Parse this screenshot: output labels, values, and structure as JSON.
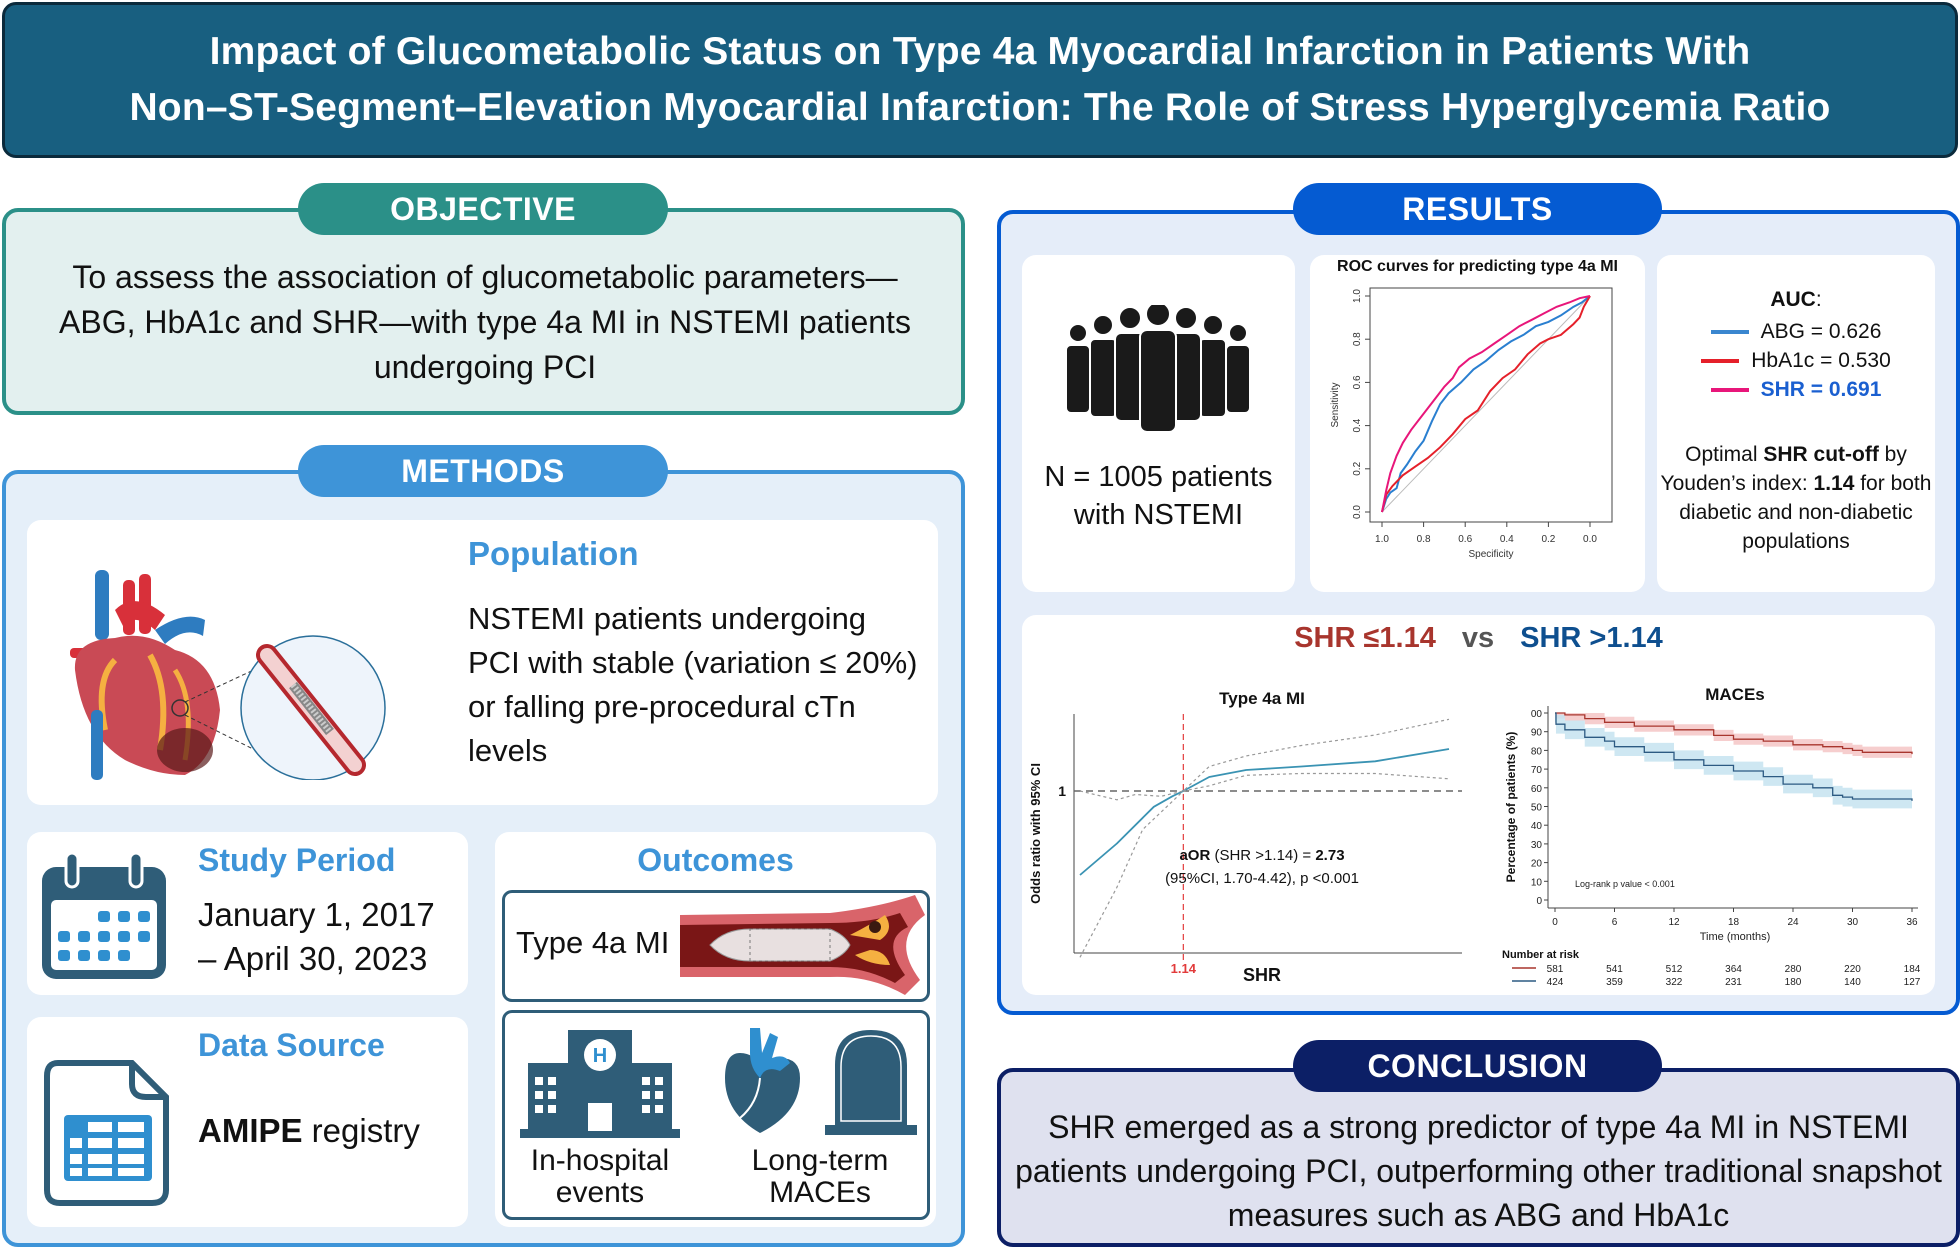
{
  "header": {
    "title_line1": "Impact of Glucometabolic Status on Type 4a Myocardial Infarction in Patients With",
    "title_line2": "Non–ST-Segment–Elevation Myocardial Infarction: The Role of Stress Hyperglycemia Ratio"
  },
  "objective": {
    "label": "OBJECTIVE",
    "text": "To assess the association of glucometabolic parameters—ABG, HbA1c and SHR—with type 4a MI in NSTEMI patients undergoing PCI"
  },
  "methods": {
    "label": "METHODS",
    "population": {
      "title": "Population",
      "text": "NSTEMI patients undergoing PCI with stable (variation ≤ 20%) or falling pre-procedural cTn levels",
      "icon": "heart-with-stent-icon"
    },
    "study_period": {
      "title": "Study Period",
      "line1": "January 1, 2017",
      "line2": "– April 30, 2023",
      "icon": "calendar-icon"
    },
    "data_source": {
      "title": "Data Source",
      "bold": "AMIPE",
      "rest": " registry",
      "icon": "spreadsheet-file-icon"
    },
    "outcomes": {
      "title": "Outcomes",
      "type4a": "Type 4a MI",
      "inhospital_line1": "In-hospital",
      "inhospital_line2": "events",
      "longterm_line1": "Long-term",
      "longterm_line2": "MACEs"
    }
  },
  "results": {
    "label": "RESULTS",
    "n_line1": "N = 1005 patients",
    "n_line2": "with NSTEMI",
    "auc": {
      "title": "AUC",
      "items": [
        {
          "label": "ABG = 0.626",
          "color": "#3a86cf"
        },
        {
          "label": "HbA1c = 0.530",
          "color": "#e5202a"
        },
        {
          "label": "SHR = 0.691",
          "color": "#e8167a",
          "text_color": "#1a5fd0"
        }
      ],
      "note_pre": "Optimal ",
      "note_bold1": "SHR cut-off",
      "note_mid": " by Youden’s index: ",
      "note_bold2": "1.14",
      "note_post": " for both diabetic and non-diabetic populations"
    },
    "compare": {
      "low": "SHR ≤1.14",
      "vs": "vs",
      "high": "SHR >1.14"
    }
  },
  "conclusion": {
    "label": "CONCLUSION",
    "text": "SHR emerged as a strong predictor of type 4a MI in NSTEMI patients undergoing PCI, outperforming other  traditional snapshot measures such as ABG and HbA1c"
  },
  "chart_data": [
    {
      "type": "line",
      "title": "ROC curves for predicting type 4a MI",
      "xlabel": "Specificity",
      "ylabel": "Sensitivity",
      "xlim": [
        1.0,
        0.0
      ],
      "ylim": [
        0.0,
        1.0
      ],
      "xticks": [
        "1.0",
        "0.8",
        "0.6",
        "0.4",
        "0.2",
        "0.0"
      ],
      "yticks": [
        "0.0",
        "0.2",
        "0.4",
        "0.6",
        "0.8",
        "1.0"
      ],
      "series": [
        {
          "name": "ABG",
          "color": "#2a7fd0",
          "specificity": [
            1.0,
            0.98,
            0.96,
            0.93,
            0.91,
            0.88,
            0.84,
            0.8,
            0.76,
            0.72,
            0.68,
            0.62,
            0.56,
            0.5,
            0.44,
            0.38,
            0.32,
            0.26,
            0.2,
            0.14,
            0.08,
            0.04,
            0.0
          ],
          "sensitivity": [
            0.0,
            0.06,
            0.09,
            0.11,
            0.18,
            0.22,
            0.28,
            0.33,
            0.42,
            0.5,
            0.55,
            0.6,
            0.66,
            0.7,
            0.75,
            0.79,
            0.82,
            0.86,
            0.88,
            0.91,
            0.95,
            0.97,
            1.0
          ]
        },
        {
          "name": "HbA1c",
          "color": "#e5202a",
          "specificity": [
            1.0,
            0.98,
            0.95,
            0.9,
            0.84,
            0.78,
            0.72,
            0.66,
            0.6,
            0.54,
            0.48,
            0.42,
            0.36,
            0.3,
            0.24,
            0.2,
            0.14,
            0.08,
            0.05,
            0.03,
            0.0
          ],
          "sensitivity": [
            0.0,
            0.08,
            0.12,
            0.17,
            0.21,
            0.25,
            0.3,
            0.36,
            0.43,
            0.47,
            0.56,
            0.62,
            0.66,
            0.73,
            0.78,
            0.8,
            0.82,
            0.87,
            0.9,
            0.95,
            1.0
          ]
        },
        {
          "name": "SHR",
          "color": "#e8167a",
          "specificity": [
            1.0,
            0.98,
            0.96,
            0.93,
            0.9,
            0.86,
            0.82,
            0.78,
            0.74,
            0.7,
            0.66,
            0.63,
            0.58,
            0.52,
            0.46,
            0.4,
            0.34,
            0.28,
            0.22,
            0.16,
            0.1,
            0.05,
            0.0
          ],
          "sensitivity": [
            0.0,
            0.1,
            0.18,
            0.26,
            0.32,
            0.38,
            0.43,
            0.48,
            0.53,
            0.58,
            0.62,
            0.67,
            0.71,
            0.74,
            0.78,
            0.82,
            0.86,
            0.89,
            0.92,
            0.95,
            0.97,
            0.99,
            1.0
          ]
        }
      ]
    },
    {
      "type": "line",
      "title": "Type 4a MI",
      "xlabel": "SHR",
      "ylabel": "Odds ratio with 95% CI",
      "xtick_labels": [
        "1.14"
      ],
      "ytick_labels": [
        "1"
      ],
      "cutoff": 1.14,
      "annotation_bold1": "aOR",
      "annotation_mid": " (SHR >1.14) = ",
      "annotation_bold2": "2.73",
      "annotation_line2": "(95%CI, 1.70-4.42), p <0.001",
      "series": [
        {
          "name": "OR (spline)",
          "color": "#3a93b3",
          "x_rel": [
            0,
            0.1,
            0.2,
            0.25,
            0.28,
            0.35,
            0.45,
            0.6,
            0.8,
            1.0
          ],
          "y_rel": [
            -0.48,
            -0.3,
            -0.09,
            -0.03,
            0.0,
            0.08,
            0.12,
            0.14,
            0.17,
            0.24
          ]
        },
        {
          "name": "Upper 95% CI",
          "color": "#999999",
          "x_rel": [
            0,
            0.1,
            0.15,
            0.22,
            0.28,
            0.35,
            0.45,
            0.6,
            0.8,
            1.0
          ],
          "y_rel": [
            0.0,
            -0.05,
            -0.02,
            -0.03,
            0.0,
            0.14,
            0.2,
            0.26,
            0.32,
            0.41
          ]
        },
        {
          "name": "Lower 95% CI",
          "color": "#999999",
          "x_rel": [
            0,
            0.1,
            0.17,
            0.22,
            0.28,
            0.35,
            0.45,
            0.6,
            0.8,
            1.0
          ],
          "y_rel": [
            -0.95,
            -0.55,
            -0.22,
            -0.12,
            0.0,
            0.03,
            0.09,
            0.1,
            0.1,
            0.07
          ]
        }
      ]
    },
    {
      "type": "line",
      "title": "MACEs",
      "xlabel": "Time (months)",
      "ylabel": "Percentage of patients (%)",
      "xlim": [
        0,
        36
      ],
      "ylim": [
        0,
        100
      ],
      "xticks": [
        0,
        6,
        12,
        18,
        24,
        30,
        36
      ],
      "yticks": [
        "0",
        "10",
        "20",
        "30",
        "40",
        "50",
        "60",
        "70",
        "80",
        "90",
        "00"
      ],
      "annotation": "Log-rank p value < 0.001",
      "risk_table_title": "Number at risk",
      "series": [
        {
          "name": "SHR ≤1.14",
          "color": "#a8352d",
          "band_color": "#f5c6c6",
          "time": [
            0,
            1,
            3,
            5,
            8,
            12,
            16,
            18,
            21,
            24,
            27,
            29,
            30,
            31,
            36
          ],
          "survival": [
            100,
            99,
            97,
            95,
            93,
            91,
            88,
            86,
            85,
            83,
            82,
            81,
            80,
            79,
            78
          ],
          "at_risk": [
            581,
            541,
            512,
            364,
            280,
            220,
            184
          ]
        },
        {
          "name": "SHR >1.14",
          "color": "#2c5a82",
          "band_color": "#c6e3f0",
          "time": [
            0,
            0.1,
            1,
            3,
            5,
            6,
            9,
            12,
            15,
            18,
            21,
            23,
            26,
            28,
            29,
            30,
            33,
            36
          ],
          "survival": [
            100,
            94,
            91,
            87,
            85,
            82,
            79,
            75,
            72,
            69,
            66,
            62,
            60,
            56,
            55,
            54,
            54,
            53
          ],
          "at_risk": [
            424,
            359,
            322,
            231,
            180,
            140,
            127
          ]
        }
      ]
    }
  ]
}
